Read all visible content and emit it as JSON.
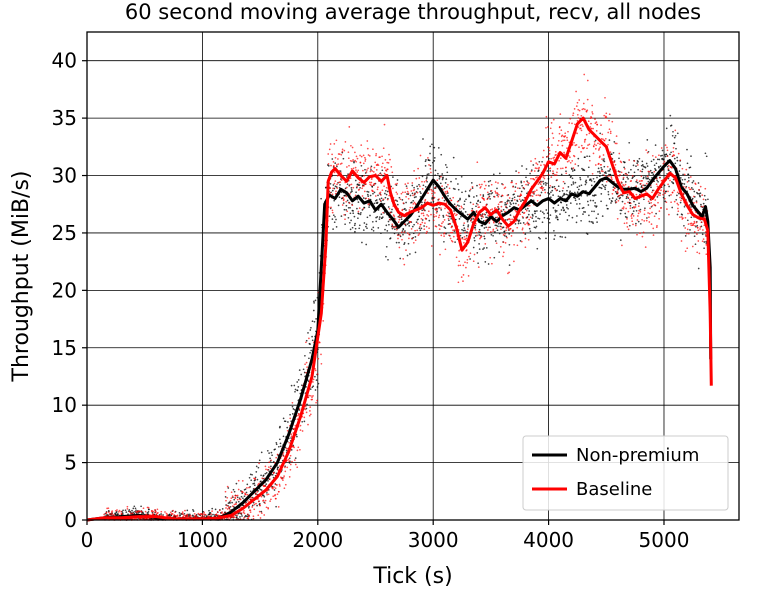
{
  "chart_data": {
    "type": "line",
    "title": "60 second moving average throughput, recv, all nodes",
    "xlabel": "Tick (s)",
    "ylabel": "Throughput (MiB/s)",
    "xlim": [
      0,
      5650
    ],
    "ylim": [
      0,
      42.5
    ],
    "x_ticks": [
      0,
      1000,
      2000,
      3000,
      4000,
      5000
    ],
    "y_ticks": [
      0,
      5,
      10,
      15,
      20,
      25,
      30,
      35,
      40
    ],
    "grid": true,
    "legend_position": "lower-right",
    "series": [
      {
        "name": "Non-premium",
        "color": "#000000",
        "points": [
          [
            0,
            0
          ],
          [
            150,
            0.2
          ],
          [
            300,
            0.3
          ],
          [
            450,
            0.4
          ],
          [
            600,
            0.2
          ],
          [
            750,
            0.1
          ],
          [
            900,
            0.1
          ],
          [
            1050,
            0.1
          ],
          [
            1150,
            0.2
          ],
          [
            1250,
            0.7
          ],
          [
            1350,
            1.5
          ],
          [
            1450,
            2.5
          ],
          [
            1550,
            3.5
          ],
          [
            1650,
            5.0
          ],
          [
            1750,
            7.5
          ],
          [
            1850,
            10.5
          ],
          [
            1950,
            14.0
          ],
          [
            2000,
            16.5
          ],
          [
            2030,
            22.0
          ],
          [
            2060,
            27.5
          ],
          [
            2100,
            28.3
          ],
          [
            2150,
            28.0
          ],
          [
            2200,
            28.8
          ],
          [
            2250,
            28.5
          ],
          [
            2300,
            27.8
          ],
          [
            2350,
            28.2
          ],
          [
            2400,
            27.6
          ],
          [
            2450,
            27.8
          ],
          [
            2500,
            27.0
          ],
          [
            2550,
            27.5
          ],
          [
            2600,
            26.8
          ],
          [
            2650,
            26.2
          ],
          [
            2700,
            25.5
          ],
          [
            2750,
            26.0
          ],
          [
            2800,
            26.5
          ],
          [
            2850,
            27.2
          ],
          [
            2900,
            28.0
          ],
          [
            2950,
            28.8
          ],
          [
            3000,
            29.6
          ],
          [
            3050,
            29.0
          ],
          [
            3100,
            28.2
          ],
          [
            3150,
            27.5
          ],
          [
            3200,
            27.0
          ],
          [
            3250,
            26.6
          ],
          [
            3300,
            26.2
          ],
          [
            3350,
            26.8
          ],
          [
            3400,
            26.0
          ],
          [
            3450,
            25.8
          ],
          [
            3500,
            26.4
          ],
          [
            3550,
            26.0
          ],
          [
            3600,
            26.5
          ],
          [
            3650,
            26.8
          ],
          [
            3700,
            27.2
          ],
          [
            3750,
            27.0
          ],
          [
            3800,
            27.4
          ],
          [
            3850,
            27.8
          ],
          [
            3900,
            27.4
          ],
          [
            3950,
            27.8
          ],
          [
            4000,
            28.0
          ],
          [
            4050,
            27.6
          ],
          [
            4100,
            28.0
          ],
          [
            4150,
            27.8
          ],
          [
            4200,
            28.4
          ],
          [
            4250,
            28.2
          ],
          [
            4300,
            28.6
          ],
          [
            4350,
            28.4
          ],
          [
            4400,
            29.0
          ],
          [
            4450,
            29.6
          ],
          [
            4500,
            29.8
          ],
          [
            4550,
            29.4
          ],
          [
            4600,
            29.0
          ],
          [
            4650,
            28.8
          ],
          [
            4700,
            28.8
          ],
          [
            4750,
            28.9
          ],
          [
            4800,
            28.6
          ],
          [
            4850,
            28.9
          ],
          [
            4900,
            29.6
          ],
          [
            4950,
            30.2
          ],
          [
            5000,
            30.8
          ],
          [
            5050,
            31.3
          ],
          [
            5100,
            30.6
          ],
          [
            5150,
            29.0
          ],
          [
            5200,
            28.4
          ],
          [
            5250,
            27.4
          ],
          [
            5300,
            26.8
          ],
          [
            5330,
            26.4
          ],
          [
            5360,
            27.3
          ],
          [
            5380,
            26.0
          ],
          [
            5400,
            22.0
          ],
          [
            5405,
            14.0
          ]
        ]
      },
      {
        "name": "Baseline",
        "color": "#ff0000",
        "points": [
          [
            0,
            0
          ],
          [
            150,
            0.2
          ],
          [
            300,
            0.2
          ],
          [
            450,
            0.3
          ],
          [
            600,
            0.3
          ],
          [
            750,
            0.1
          ],
          [
            900,
            0.1
          ],
          [
            1050,
            0.1
          ],
          [
            1150,
            0.2
          ],
          [
            1250,
            0.4
          ],
          [
            1350,
            1.0
          ],
          [
            1450,
            1.8
          ],
          [
            1550,
            2.6
          ],
          [
            1650,
            3.8
          ],
          [
            1750,
            6.0
          ],
          [
            1850,
            9.0
          ],
          [
            1950,
            12.5
          ],
          [
            2030,
            18.0
          ],
          [
            2070,
            24.0
          ],
          [
            2090,
            29.5
          ],
          [
            2120,
            30.3
          ],
          [
            2150,
            30.6
          ],
          [
            2200,
            30.0
          ],
          [
            2250,
            29.5
          ],
          [
            2300,
            30.4
          ],
          [
            2350,
            29.8
          ],
          [
            2400,
            29.4
          ],
          [
            2450,
            29.9
          ],
          [
            2500,
            30.0
          ],
          [
            2550,
            29.5
          ],
          [
            2600,
            30.0
          ],
          [
            2630,
            28.5
          ],
          [
            2660,
            27.5
          ],
          [
            2700,
            26.8
          ],
          [
            2750,
            26.5
          ],
          [
            2800,
            26.8
          ],
          [
            2850,
            27.0
          ],
          [
            2900,
            27.2
          ],
          [
            2950,
            27.6
          ],
          [
            3000,
            27.4
          ],
          [
            3050,
            27.6
          ],
          [
            3100,
            27.5
          ],
          [
            3150,
            27.0
          ],
          [
            3200,
            25.5
          ],
          [
            3250,
            23.5
          ],
          [
            3300,
            24.2
          ],
          [
            3350,
            25.8
          ],
          [
            3400,
            26.8
          ],
          [
            3450,
            27.2
          ],
          [
            3500,
            26.6
          ],
          [
            3550,
            27.0
          ],
          [
            3600,
            26.2
          ],
          [
            3650,
            25.6
          ],
          [
            3700,
            26.0
          ],
          [
            3750,
            27.0
          ],
          [
            3800,
            27.8
          ],
          [
            3850,
            28.8
          ],
          [
            3900,
            29.5
          ],
          [
            3950,
            30.2
          ],
          [
            4000,
            31.2
          ],
          [
            4050,
            31.0
          ],
          [
            4100,
            32.0
          ],
          [
            4150,
            31.5
          ],
          [
            4200,
            33.0
          ],
          [
            4250,
            34.5
          ],
          [
            4300,
            35.0
          ],
          [
            4350,
            34.0
          ],
          [
            4400,
            33.5
          ],
          [
            4450,
            33.0
          ],
          [
            4500,
            32.5
          ],
          [
            4550,
            31.0
          ],
          [
            4600,
            29.5
          ],
          [
            4650,
            28.5
          ],
          [
            4700,
            28.6
          ],
          [
            4750,
            28.0
          ],
          [
            4800,
            28.2
          ],
          [
            4850,
            28.4
          ],
          [
            4900,
            28.0
          ],
          [
            4950,
            28.8
          ],
          [
            5000,
            29.5
          ],
          [
            5050,
            30.2
          ],
          [
            5100,
            29.8
          ],
          [
            5150,
            28.4
          ],
          [
            5200,
            27.4
          ],
          [
            5250,
            26.6
          ],
          [
            5300,
            26.3
          ],
          [
            5350,
            26.2
          ],
          [
            5380,
            25.2
          ],
          [
            5400,
            18.0
          ],
          [
            5410,
            11.7
          ]
        ]
      }
    ]
  }
}
